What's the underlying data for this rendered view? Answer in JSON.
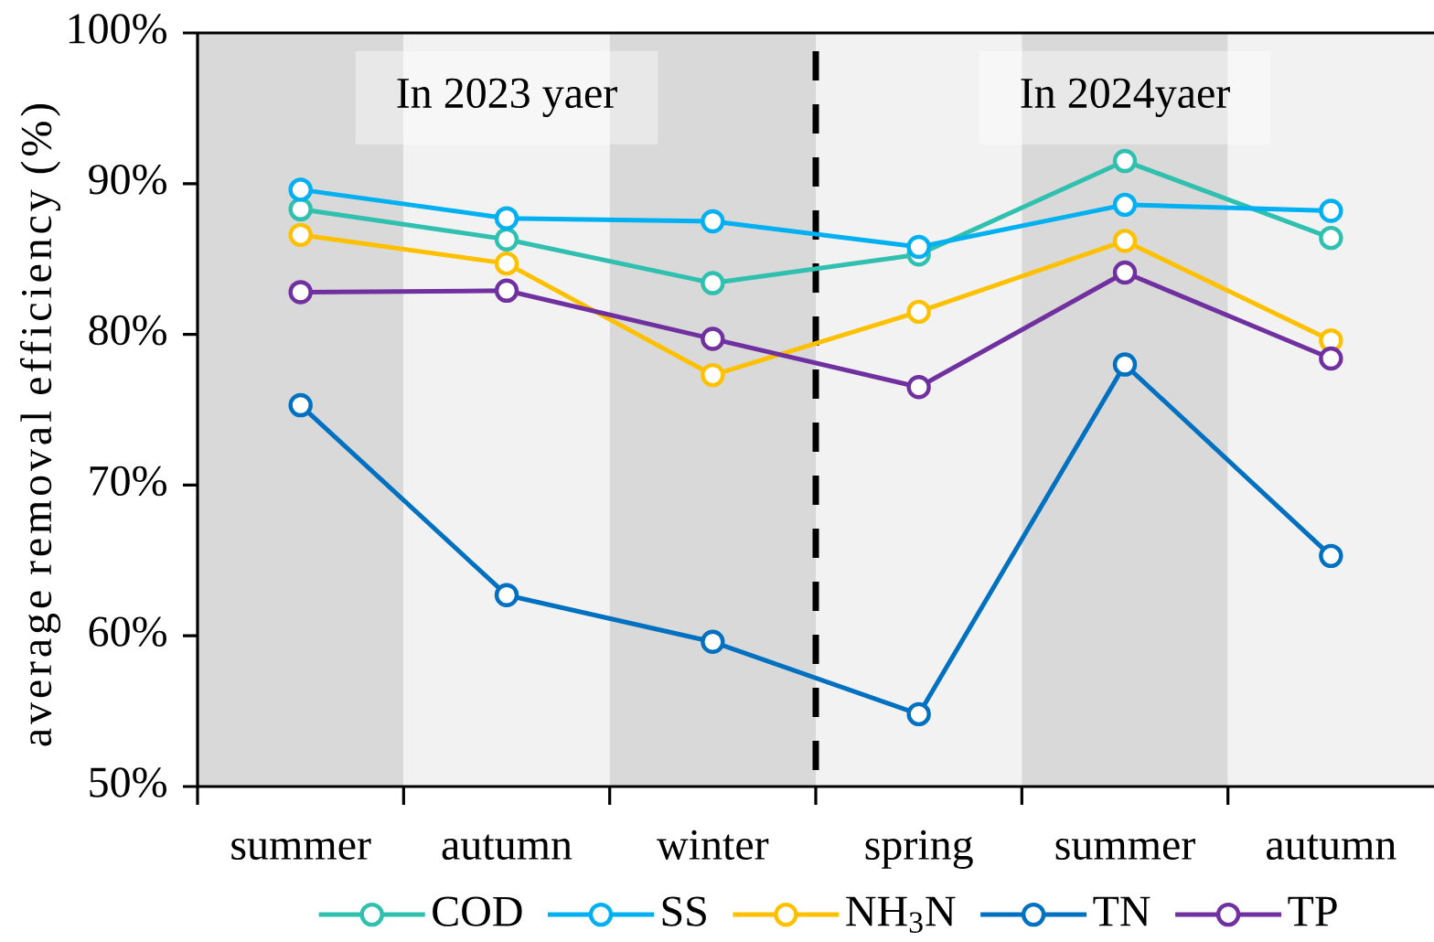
{
  "chart_data": {
    "type": "line",
    "ylabel": "average removal efficiency (%)",
    "categories": [
      "summer",
      "autumn",
      "winter",
      "spring",
      "summer",
      "autumn"
    ],
    "series": [
      {
        "name": "COD",
        "color": "#30c0b0",
        "values": [
          88.3,
          86.3,
          83.4,
          85.3,
          91.5,
          86.4
        ]
      },
      {
        "name": "SS",
        "color": "#00b0f0",
        "values": [
          89.6,
          87.7,
          87.5,
          85.8,
          88.6,
          88.2
        ]
      },
      {
        "name": "NH$_{3}$N",
        "color": "#ffc000",
        "values": [
          86.6,
          84.7,
          77.3,
          81.5,
          86.2,
          79.6
        ]
      },
      {
        "name": "TN",
        "color": "#0070c0",
        "values": [
          75.3,
          62.7,
          59.6,
          54.8,
          78.0,
          65.3
        ]
      },
      {
        "name": "TP",
        "color": "#7030a0",
        "values": [
          82.8,
          82.9,
          79.7,
          76.5,
          84.1,
          78.4
        ]
      }
    ],
    "ylim": [
      50,
      100
    ],
    "yticks": [
      {
        "value": 50,
        "label": "50%"
      },
      {
        "value": 60,
        "label": "60%"
      },
      {
        "value": 70,
        "label": "70%"
      },
      {
        "value": 80,
        "label": "80%"
      },
      {
        "value": 90,
        "label": "90%"
      },
      {
        "value": 100,
        "label": "100%"
      }
    ],
    "marker": "circle",
    "line_style": "solid",
    "legend": "bottom",
    "annotations": [
      "In 2023 yaer",
      "In 2024yaer"
    ]
  }
}
